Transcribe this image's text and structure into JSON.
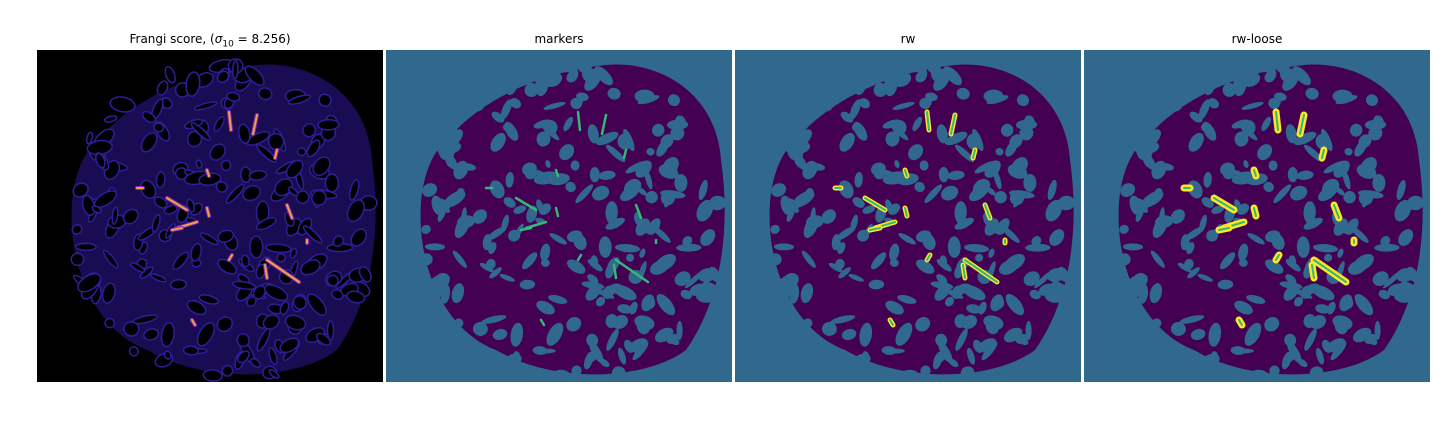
{
  "figure": {
    "panels": [
      {
        "title_prefix": "Frangi score, (",
        "title_sigma": "σ",
        "title_sub": "10",
        "title_suffix": " = 8.256)",
        "colormap": "magma",
        "background": "#000000"
      },
      {
        "title": "markers",
        "colormap": "viridis",
        "background": "#31688e"
      },
      {
        "title": "rw",
        "colormap": "viridis",
        "background": "#31688e"
      },
      {
        "title": "rw-loose",
        "colormap": "viridis",
        "background": "#31688e"
      }
    ],
    "colors": {
      "viridis_dark": "#440154",
      "viridis_mid": "#31688e",
      "viridis_green": "#35b779",
      "viridis_yellow": "#fde725",
      "magma_dark": "#000004",
      "magma_blue": "#2c1f9a",
      "magma_purple": "#8c29b8",
      "magma_orange": "#f0a040"
    }
  }
}
